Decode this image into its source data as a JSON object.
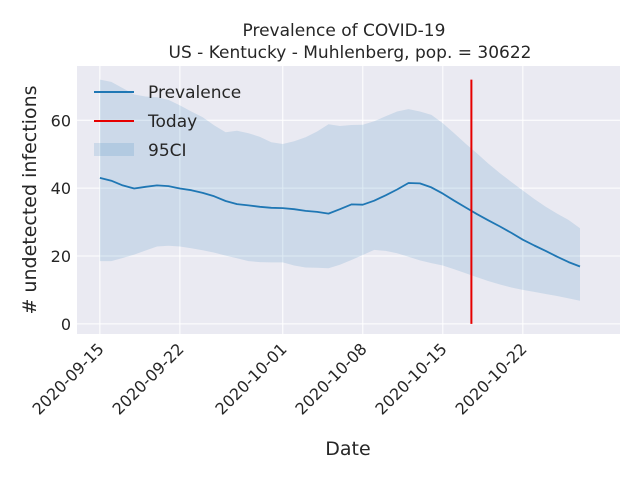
{
  "chart_data": {
    "type": "line",
    "title": "Prevalence of COVID-19",
    "subtitle": "US - Kentucky - Muhlenberg, pop. = 30622",
    "xlabel": "Date",
    "ylabel": "# undetected infections",
    "ylim": [
      -3,
      76
    ],
    "xlim_day": [
      -2,
      45.5
    ],
    "grid": true,
    "legend_position": "top-left",
    "x_ticks": [
      {
        "label": "2020-09-15",
        "day": 0
      },
      {
        "label": "2020-09-22",
        "day": 7
      },
      {
        "label": "2020-10-01",
        "day": 16
      },
      {
        "label": "2020-10-08",
        "day": 23
      },
      {
        "label": "2020-10-15",
        "day": 30
      },
      {
        "label": "2020-10-22",
        "day": 37
      }
    ],
    "y_ticks": [
      0,
      20,
      40,
      60
    ],
    "series": [
      {
        "name": "Prevalence",
        "color": "#1f77b4",
        "day": [
          0,
          1,
          2,
          3,
          4,
          5,
          6,
          7,
          8,
          9,
          10,
          11,
          12,
          13,
          14,
          15,
          16,
          17,
          18,
          19,
          20,
          21,
          22,
          23,
          24,
          25,
          26,
          27,
          28,
          29,
          30,
          31,
          32,
          33,
          34,
          35,
          36,
          37,
          38,
          39,
          40,
          41,
          42
        ],
        "values": [
          43,
          42.2,
          40.8,
          39.9,
          40.4,
          40.8,
          40.6,
          39.9,
          39.4,
          38.6,
          37.6,
          36.2,
          35.3,
          34.9,
          34.5,
          34.2,
          34.1,
          33.8,
          33.3,
          33,
          32.5,
          33.8,
          35.2,
          35.1,
          36.3,
          37.9,
          39.6,
          41.5,
          41.4,
          40.2,
          38.4,
          36.3,
          34.3,
          32.3,
          30.5,
          28.7,
          26.8,
          24.8,
          23.1,
          21.5,
          19.8,
          18.2,
          16.9
        ]
      }
    ],
    "band": {
      "name": "95CI",
      "color": "#1f77b4",
      "day": [
        0,
        1,
        2,
        3,
        4,
        5,
        6,
        7,
        8,
        9,
        10,
        11,
        12,
        13,
        14,
        15,
        16,
        17,
        18,
        19,
        20,
        21,
        22,
        23,
        24,
        25,
        26,
        27,
        28,
        29,
        30,
        31,
        32,
        33,
        34,
        35,
        36,
        37,
        38,
        39,
        40,
        41,
        42
      ],
      "upper": [
        72,
        71.3,
        69.5,
        67.6,
        67,
        66.8,
        66,
        64.4,
        62.6,
        60.9,
        58.5,
        56.5,
        56.9,
        56.2,
        55.1,
        53.5,
        53,
        53.8,
        55,
        56.7,
        58.8,
        58.3,
        58.6,
        58.7,
        59.7,
        61.2,
        62.6,
        63.3,
        62.6,
        61.6,
        59.1,
        56.2,
        53.1,
        50.2,
        47.2,
        44.4,
        41.8,
        39.3,
        36.8,
        34.5,
        32.5,
        30.6,
        28.2
      ],
      "lower": [
        18.5,
        18.5,
        19.4,
        20.4,
        21.6,
        22.8,
        23,
        22.8,
        22.3,
        21.7,
        21,
        20.1,
        19.3,
        18.5,
        18.2,
        18.1,
        18.1,
        17.2,
        16.6,
        16.5,
        16.4,
        17.4,
        18.8,
        20.3,
        21.8,
        21.5,
        20.8,
        19.8,
        18.7,
        17.9,
        17.2,
        16.1,
        14.9,
        13.7,
        12.6,
        11.6,
        10.7,
        10,
        9.4,
        8.8,
        8.2,
        7.5,
        6.8
      ]
    },
    "today": {
      "name": "Today",
      "day": 32.5,
      "color": "#e60000",
      "ymin": 0,
      "ymax": 72
    }
  }
}
